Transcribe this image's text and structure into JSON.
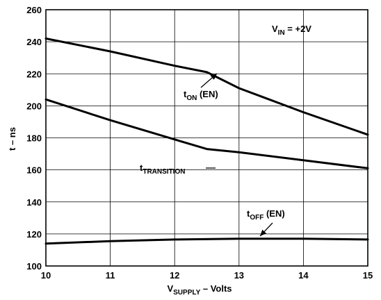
{
  "chart_data": {
    "type": "line",
    "title": "",
    "xlabel": {
      "main": "V",
      "sub": "SUPPLY",
      "suffix": " – Volts"
    },
    "ylabel": "t – ns",
    "xlim": [
      10,
      15
    ],
    "ylim": [
      100,
      260
    ],
    "x_ticks": [
      10,
      11,
      12,
      13,
      14,
      15
    ],
    "y_ticks": [
      100,
      120,
      140,
      160,
      180,
      200,
      220,
      240,
      260
    ],
    "grid": true,
    "annotation": {
      "main": "V",
      "sub": "IN",
      "suffix": " = +2V"
    },
    "series": [
      {
        "name": "ton",
        "label": {
          "main": "t",
          "sub": "ON",
          "suffix": " (EN)"
        },
        "x": [
          10,
          11,
          12,
          12.5,
          13,
          14,
          15
        ],
        "y": [
          242,
          234,
          225,
          221,
          211,
          196,
          182
        ]
      },
      {
        "name": "ttransition",
        "label": {
          "main": "t",
          "sub": "TRANSITION",
          "suffix": ""
        },
        "x": [
          10,
          11,
          12,
          12.5,
          13,
          14,
          15
        ],
        "y": [
          204,
          191,
          179,
          173,
          171,
          166,
          161
        ]
      },
      {
        "name": "toff",
        "label": {
          "main": "t",
          "sub": "OFF",
          "suffix": " (EN)"
        },
        "x": [
          10,
          11,
          12,
          13,
          14,
          15
        ],
        "y": [
          114,
          115.5,
          116.5,
          117,
          117,
          116.5
        ]
      }
    ]
  }
}
